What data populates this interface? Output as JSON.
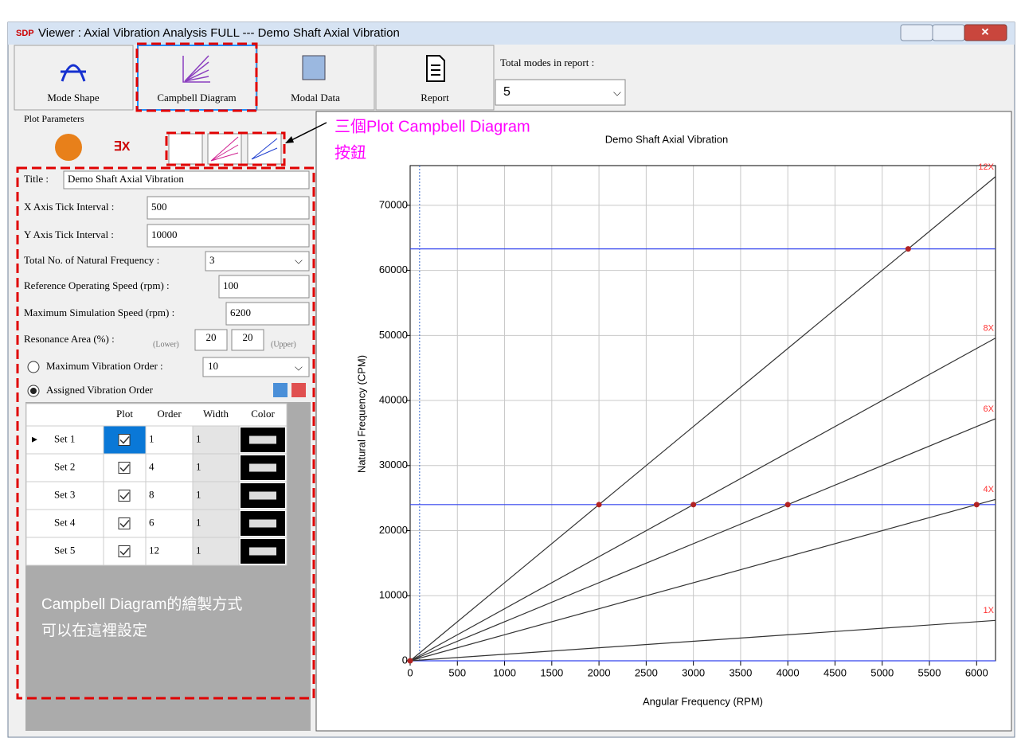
{
  "window": {
    "title": "Viewer : Axial Vibration Analysis FULL --- Demo Shaft Axial Vibration"
  },
  "toolbar": {
    "buttons": [
      "Mode Shape",
      "Campbell Diagram",
      "Modal Data",
      "Report"
    ],
    "modes_label": "Total modes in report :",
    "modes_value": "5"
  },
  "panel": {
    "title": "Plot Parameters",
    "fields": [
      {
        "label": "Title :",
        "value": "Demo Shaft Axial Vibration"
      },
      {
        "label": "X Axis Tick Interval :",
        "value": "500"
      },
      {
        "label": "Y Axis Tick Interval :",
        "value": "10000"
      },
      {
        "label": "Total No. of Natural Frequency :",
        "value": "3"
      },
      {
        "label": "Reference Operating Speed (rpm) :",
        "value": "100"
      },
      {
        "label": "Maximum Simulation Speed (rpm) :",
        "value": "6200"
      }
    ],
    "resonance": {
      "label": "Resonance Area (%) :",
      "lower": "20",
      "upper": "20",
      "lower_label": "(Lower)",
      "upper_label": "(Upper)"
    },
    "max_order": {
      "label": "Maximum Vibration Order :",
      "value": "10"
    },
    "assigned_order": "Assigned Vibration Order",
    "table": {
      "columns": [
        "Plot",
        "Order",
        "Width",
        "Color"
      ],
      "rows": [
        [
          "Set 1",
          "1",
          "1"
        ],
        [
          "Set 2",
          "4",
          "1"
        ],
        [
          "Set 3",
          "8",
          "1"
        ],
        [
          "Set 4",
          "6",
          "1"
        ],
        [
          "Set 5",
          "12",
          "1"
        ]
      ]
    }
  },
  "annotations": {
    "buttons_note_1": "三個Plot Campbell Diagram",
    "buttons_note_2": "按鈕",
    "panel_note_1": "Campbell Diagram的繪製方式",
    "panel_note_2": "可以在這裡設定"
  },
  "chart_data": {
    "type": "line",
    "title": "Demo Shaft Axial Vibration",
    "x_label": "Angular Frequency (RPM)",
    "y_label": "Natural Frequency (CPM)",
    "x": [
      0,
      6200
    ],
    "series": [
      {
        "name": "1X",
        "color": "#333333",
        "values": [
          0,
          6200
        ]
      },
      {
        "name": "4X",
        "color": "#333333",
        "values": [
          0,
          24800
        ]
      },
      {
        "name": "8X",
        "color": "#333333",
        "values": [
          0,
          49600
        ]
      },
      {
        "name": "6X",
        "color": "#333333",
        "values": [
          0,
          37200
        ]
      },
      {
        "name": "12X",
        "color": "#333333",
        "values": [
          0,
          74400
        ]
      }
    ],
    "natural_frequencies": [
      0,
      24000,
      63300
    ],
    "natural_frequency_color": "#3344ee",
    "reference_speed": 100,
    "reference_color": "#3366cc",
    "resonance_points": {
      "x": [
        0,
        2000,
        3000,
        4000,
        6000,
        5275
      ],
      "y": [
        0,
        24000,
        24000,
        24000,
        24000,
        63300
      ]
    },
    "point_color": "#b22222",
    "label_color": "#ff3333",
    "xlim": [
      0,
      6200
    ],
    "ylim": [
      0,
      76100
    ],
    "xticks": [
      0,
      500,
      1000,
      1500,
      2000,
      2500,
      3000,
      3500,
      4000,
      4500,
      5000,
      5500,
      6000
    ],
    "yticks": [
      0,
      10000,
      20000,
      30000,
      40000,
      50000,
      60000,
      70000
    ],
    "grid": true
  }
}
